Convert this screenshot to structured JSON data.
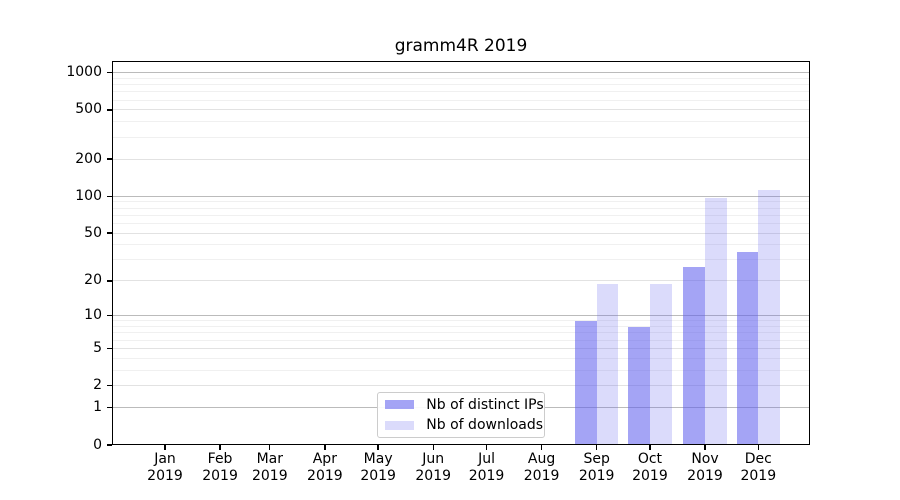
{
  "title": "gramm4R 2019",
  "legend": {
    "items": [
      {
        "label": "Nb of distinct IPs"
      },
      {
        "label": "Nb of downloads"
      }
    ]
  },
  "colors": {
    "bar_base": "#5c5ced",
    "bar_distinct_ips_alpha": 0.56,
    "bar_downloads_alpha": 0.22,
    "bar_distinct_ips_solid": "#a3a3f4",
    "bar_downloads_solid": "#dbdbfb",
    "grid_major": "#bbbbbb",
    "grid_labeled": "#e2e2e2",
    "grid_minor": "#f0f0f0",
    "axis": "#000000",
    "background": "#ffffff",
    "legend_border": "#cccccc"
  },
  "chart_data": {
    "type": "bar",
    "title": "gramm4R 2019",
    "categories": [
      "Jan 2019",
      "Feb 2019",
      "Mar 2019",
      "Apr 2019",
      "May 2019",
      "Jun 2019",
      "Jul 2019",
      "Aug 2019",
      "Sep 2019",
      "Oct 2019",
      "Nov 2019",
      "Dec 2019"
    ],
    "x_tick_month": [
      "Jan",
      "Feb",
      "Mar",
      "Apr",
      "May",
      "Jun",
      "Jul",
      "Aug",
      "Sep",
      "Oct",
      "Nov",
      "Dec"
    ],
    "x_tick_year": "2019",
    "series": [
      {
        "name": "Nb of distinct IPs",
        "values": [
          0,
          0,
          0,
          0,
          0,
          0,
          0,
          0,
          9,
          8,
          26,
          35
        ]
      },
      {
        "name": "Nb of downloads",
        "values": [
          0,
          0,
          0,
          0,
          0,
          0,
          0,
          0,
          19,
          19,
          97,
          113
        ]
      }
    ],
    "yscale": "log1p",
    "ytick_values": [
      0,
      1,
      2,
      5,
      10,
      20,
      50,
      100,
      200,
      500,
      1000
    ],
    "ytick_labels": [
      "0",
      "1",
      "2",
      "5",
      "10",
      "20",
      "50",
      "100",
      "200",
      "500",
      "1000"
    ],
    "ytick_major": [
      1,
      10,
      100,
      1000
    ],
    "yminor_values": [
      3,
      4,
      6,
      7,
      8,
      9,
      30,
      40,
      60,
      70,
      80,
      90,
      300,
      400,
      600,
      700,
      800,
      900
    ],
    "ylim": [
      0,
      1253
    ],
    "xlabel": "",
    "ylabel": "",
    "grid": "horizontal",
    "legend_position": "inside lower-center-left"
  }
}
